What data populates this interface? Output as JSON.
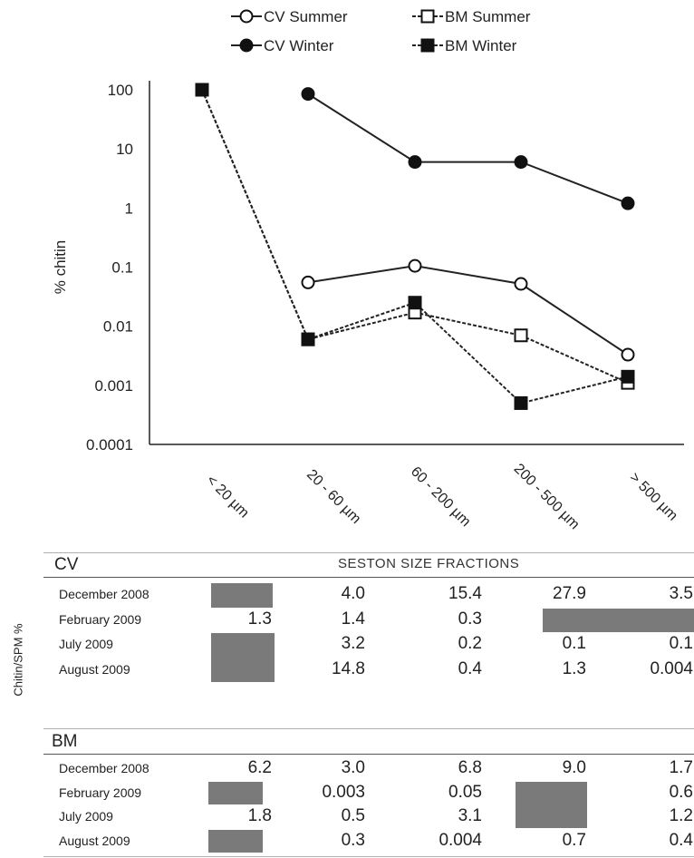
{
  "chart_data": {
    "type": "line",
    "ylabel": "% chitin",
    "yscale": "log",
    "ylim": [
      0.0001,
      100
    ],
    "yticks": [
      "100",
      "10",
      "1",
      "0.1",
      "0.01",
      "0.001",
      "0.0001"
    ],
    "categories": [
      "< 20 µm",
      "20 - 60 µm",
      "60 - 200 µm",
      "200 - 500 µm",
      "> 500 µm"
    ],
    "legend_position": "top",
    "series": [
      {
        "name": "CV Summer",
        "marker": "open-circle",
        "line": "solid",
        "values": [
          null,
          0.055,
          0.105,
          0.052,
          0.0033
        ]
      },
      {
        "name": "BM Summer",
        "marker": "open-square",
        "line": "dashed",
        "values": [
          100,
          0.006,
          0.017,
          0.007,
          0.0011
        ]
      },
      {
        "name": "CV Winter",
        "marker": "filled-circle",
        "line": "solid",
        "values": [
          null,
          85,
          6,
          6,
          1.2
        ]
      },
      {
        "name": "BM Winter",
        "marker": "filled-square",
        "line": "dashed",
        "values": [
          100,
          0.006,
          0.025,
          0.0005,
          0.0014
        ]
      }
    ]
  },
  "table": {
    "side_label": "Chitin/SPM %",
    "header": "SESTON SIZE FRACTIONS",
    "groups": [
      {
        "name": "CV",
        "rows": [
          {
            "label": "December 2008",
            "cells": [
              "",
              "4.0",
              "15.4",
              "27.9",
              "3.5"
            ]
          },
          {
            "label": "February 2009",
            "cells": [
              "1.3",
              "1.4",
              "0.3",
              "",
              ""
            ]
          },
          {
            "label": "July 2009",
            "cells": [
              "",
              "3.2",
              "0.2",
              "0.1",
              "0.1"
            ]
          },
          {
            "label": "August 2009",
            "cells": [
              "",
              "14.8",
              "0.4",
              "1.3",
              "0.004"
            ]
          }
        ]
      },
      {
        "name": "BM",
        "rows": [
          {
            "label": "December 2008",
            "cells": [
              "6.2",
              "3.0",
              "6.8",
              "9.0",
              "1.7"
            ]
          },
          {
            "label": "February 2009",
            "cells": [
              "",
              "0.003",
              "0.05",
              "",
              "0.6"
            ]
          },
          {
            "label": "July 2009",
            "cells": [
              "1.8",
              "0.5",
              "3.1",
              "",
              "1.2"
            ]
          },
          {
            "label": "August 2009",
            "cells": [
              "",
              "0.3",
              "0.004",
              "0.7",
              "0.4"
            ]
          }
        ]
      }
    ]
  }
}
